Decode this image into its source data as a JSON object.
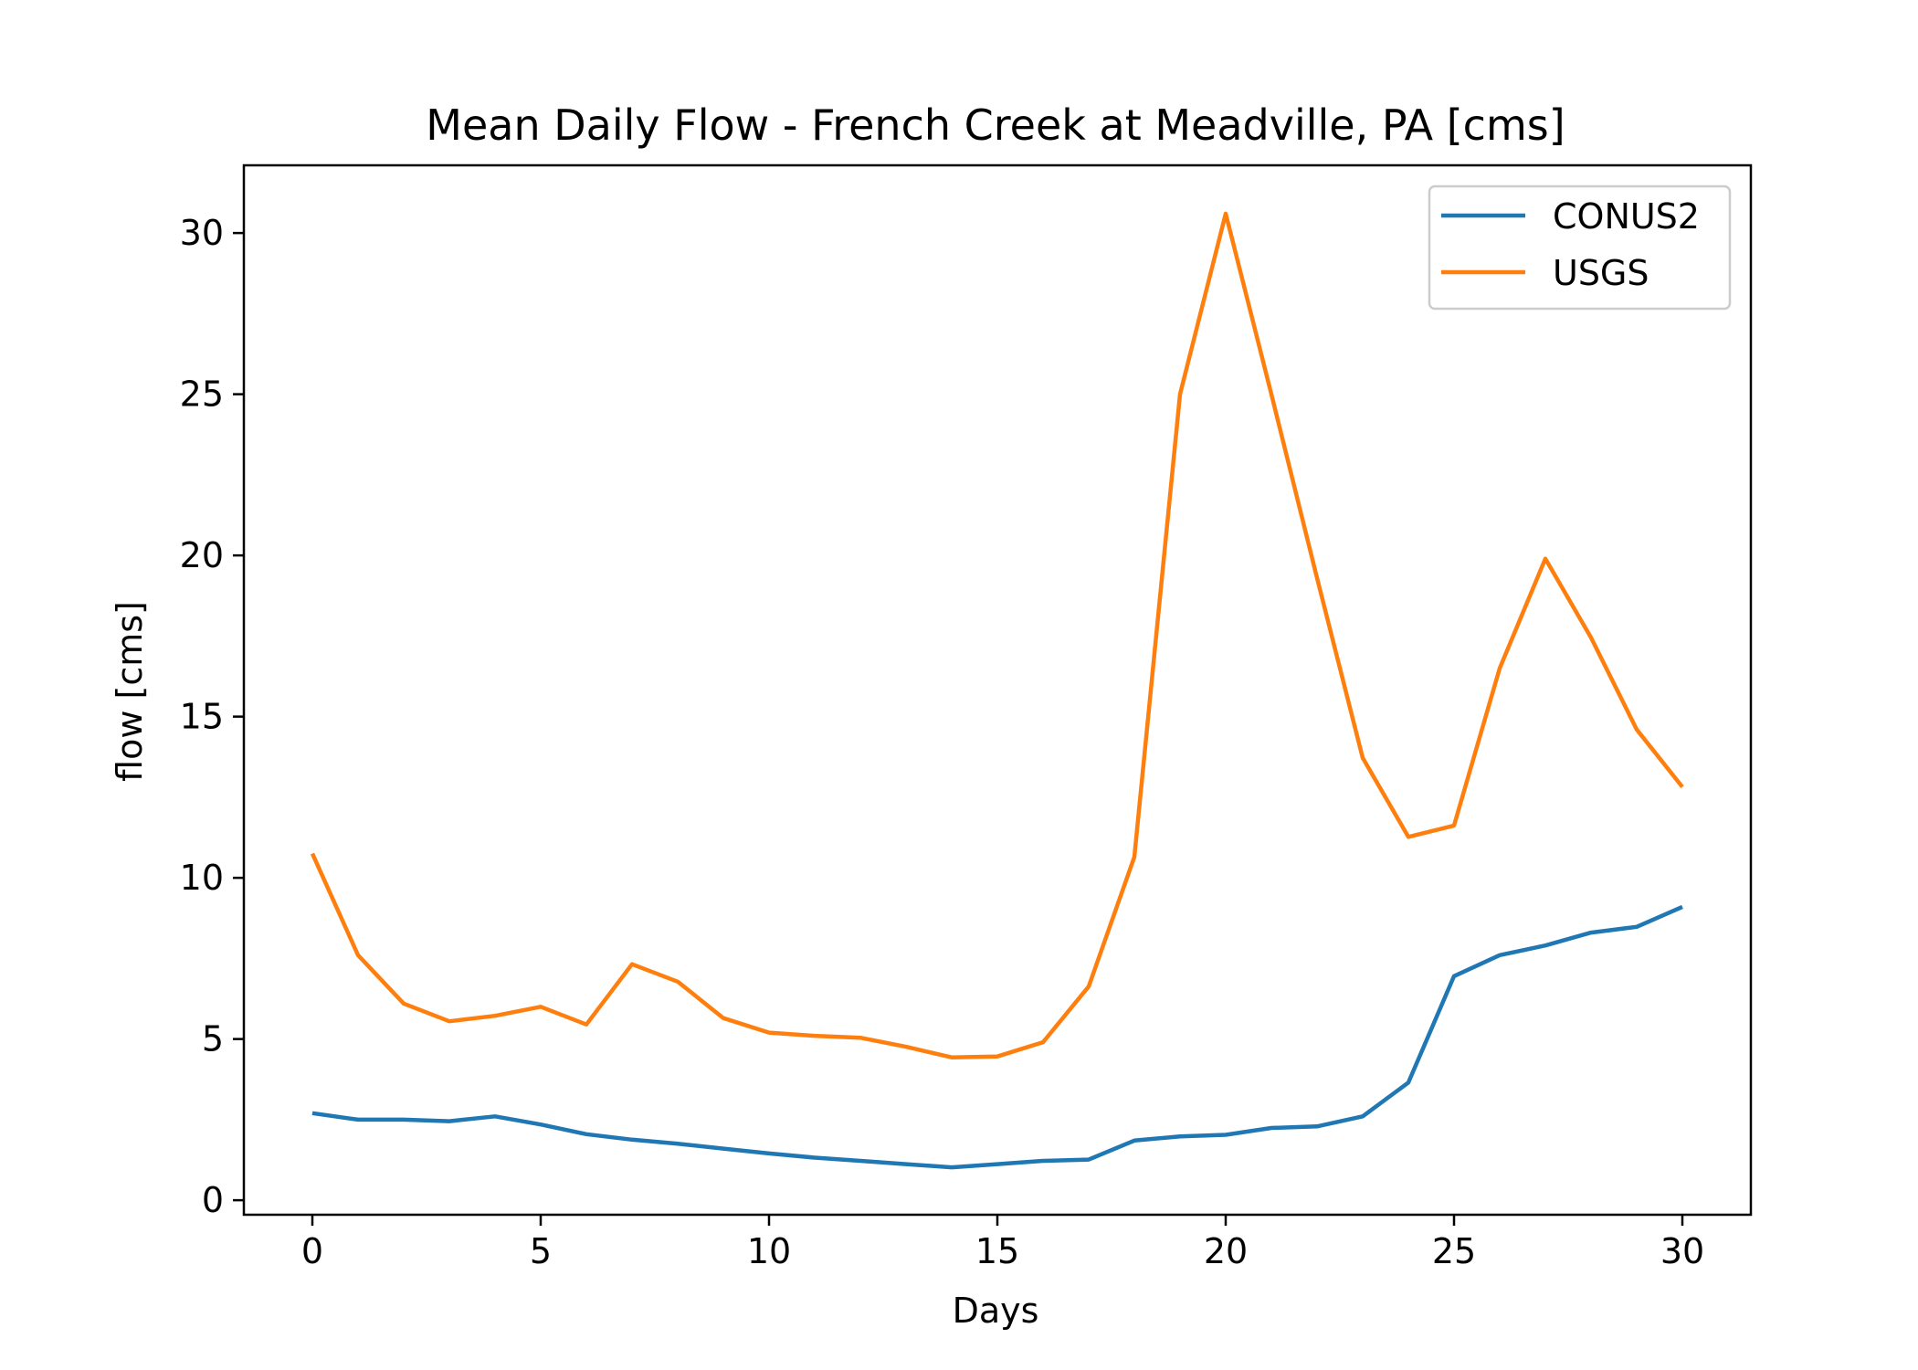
{
  "chart_data": {
    "type": "line",
    "title": "Mean Daily Flow - French Creek at Meadville, PA [cms]",
    "xlabel": "Days",
    "ylabel": "flow [cms]",
    "xlim": [
      -1.5,
      31.5
    ],
    "ylim": [
      -0.45,
      32.1
    ],
    "xticks": [
      0,
      5,
      10,
      15,
      20,
      25,
      30
    ],
    "yticks": [
      0,
      5,
      10,
      15,
      20,
      25,
      30
    ],
    "grid": false,
    "legend_position": "upper right",
    "x": [
      0,
      1,
      2,
      3,
      4,
      5,
      6,
      7,
      8,
      9,
      10,
      11,
      12,
      13,
      14,
      15,
      16,
      17,
      18,
      19,
      20,
      21,
      22,
      23,
      24,
      25,
      26,
      27,
      28,
      29,
      30
    ],
    "series": [
      {
        "name": "CONUS2",
        "color": "#1f77b4",
        "values": [
          2.7,
          2.5,
          2.5,
          2.45,
          2.6,
          2.35,
          2.05,
          1.88,
          1.75,
          1.6,
          1.45,
          1.32,
          1.22,
          1.12,
          1.02,
          1.12,
          1.22,
          1.26,
          1.85,
          1.98,
          2.03,
          2.24,
          2.29,
          2.6,
          3.65,
          6.95,
          7.6,
          7.9,
          8.3,
          8.48,
          9.1
        ]
      },
      {
        "name": "USGS",
        "color": "#ff7f0e",
        "values": [
          10.75,
          7.6,
          6.1,
          5.55,
          5.72,
          6.0,
          5.45,
          7.32,
          6.78,
          5.65,
          5.2,
          5.1,
          5.04,
          4.76,
          4.43,
          4.46,
          4.9,
          6.63,
          10.65,
          25.0,
          30.6,
          25.0,
          19.3,
          13.72,
          11.27,
          11.62,
          16.5,
          19.9,
          17.45,
          14.6,
          12.82
        ]
      }
    ]
  }
}
